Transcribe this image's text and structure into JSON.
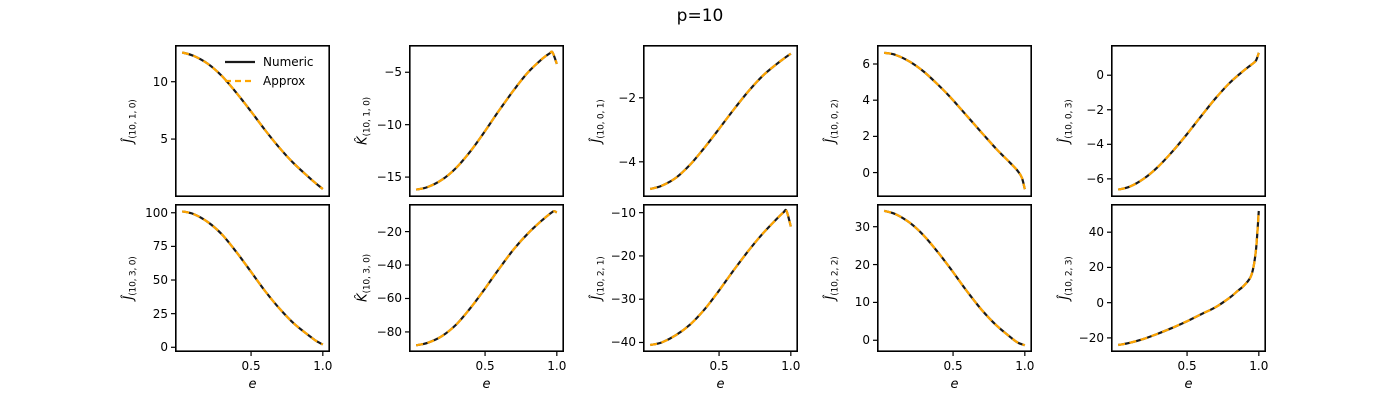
{
  "title": "p=10",
  "xlabel": "e",
  "colors": {
    "numeric": "#1a1a1a",
    "approx": "#FFA500"
  },
  "legend": {
    "location": "upper right of first subplot",
    "entries": [
      {
        "label": "Numeric",
        "color": "#1a1a1a",
        "style": "solid"
      },
      {
        "label": "Approx",
        "color": "#FFA500",
        "style": "dashed"
      }
    ]
  },
  "chart_data": [
    {
      "type": "line",
      "row": 0,
      "col": 0,
      "ylabel": {
        "main": "Ĵ",
        "sub": "(10, 1, 0)"
      },
      "xlim": [
        -0.03,
        1.05
      ],
      "ylim": [
        -0.05,
        13.2
      ],
      "xticks": [
        0.5,
        1.0
      ],
      "yticks": [
        5,
        10
      ],
      "series": [
        {
          "name": "Numeric",
          "style": "solid"
        },
        {
          "name": "Approx",
          "style": "dashed"
        }
      ],
      "x": [
        0.02,
        0.1,
        0.2,
        0.3,
        0.4,
        0.5,
        0.6,
        0.7,
        0.8,
        0.9,
        0.95,
        1.0
      ],
      "y": [
        12.55,
        12.25,
        11.55,
        10.45,
        9.0,
        7.4,
        5.75,
        4.2,
        2.85,
        1.7,
        1.15,
        0.65
      ]
    },
    {
      "type": "line",
      "row": 0,
      "col": 1,
      "ylabel": {
        "main": "K̂",
        "sub": "(10, 1, 0)"
      },
      "xlim": [
        -0.03,
        1.05
      ],
      "ylim": [
        -16.9,
        -2.4
      ],
      "xticks": [
        0.5,
        1.0
      ],
      "yticks": [
        -15,
        -10,
        -5
      ],
      "series": [
        {
          "name": "Numeric",
          "style": "solid"
        },
        {
          "name": "Approx",
          "style": "dashed"
        }
      ],
      "x": [
        0.02,
        0.1,
        0.2,
        0.3,
        0.4,
        0.5,
        0.6,
        0.7,
        0.8,
        0.9,
        0.95,
        0.97,
        1.0
      ],
      "y": [
        -16.2,
        -15.95,
        -15.25,
        -14.1,
        -12.5,
        -10.6,
        -8.6,
        -6.7,
        -5.0,
        -3.7,
        -3.2,
        -3.1,
        -4.2
      ]
    },
    {
      "type": "line",
      "row": 0,
      "col": 2,
      "ylabel": {
        "main": "Ĵ",
        "sub": "(10, 0, 1)"
      },
      "xlim": [
        -0.03,
        1.05
      ],
      "ylim": [
        -5.1,
        -0.35
      ],
      "xticks": [
        0.5,
        1.0
      ],
      "yticks": [
        -4,
        -2
      ],
      "series": [
        {
          "name": "Numeric",
          "style": "solid"
        },
        {
          "name": "Approx",
          "style": "dashed"
        }
      ],
      "x": [
        0.02,
        0.1,
        0.2,
        0.3,
        0.4,
        0.5,
        0.6,
        0.7,
        0.8,
        0.9,
        0.95,
        1.0
      ],
      "y": [
        -4.85,
        -4.75,
        -4.5,
        -4.08,
        -3.55,
        -2.97,
        -2.38,
        -1.82,
        -1.33,
        -0.95,
        -0.78,
        -0.62
      ]
    },
    {
      "type": "line",
      "row": 0,
      "col": 3,
      "ylabel": {
        "main": "Ĵ",
        "sub": "(10, 0, 2)"
      },
      "xlim": [
        -0.03,
        1.05
      ],
      "ylim": [
        -1.35,
        7.05
      ],
      "xticks": [
        0.5,
        1.0
      ],
      "yticks": [
        0,
        2,
        4,
        6
      ],
      "series": [
        {
          "name": "Numeric",
          "style": "solid"
        },
        {
          "name": "Approx",
          "style": "dashed"
        }
      ],
      "x": [
        0.02,
        0.1,
        0.2,
        0.3,
        0.4,
        0.5,
        0.6,
        0.7,
        0.8,
        0.9,
        0.95,
        0.98,
        1.0
      ],
      "y": [
        6.62,
        6.5,
        6.12,
        5.55,
        4.82,
        4.0,
        3.1,
        2.2,
        1.32,
        0.52,
        0.1,
        -0.3,
        -0.92
      ]
    },
    {
      "type": "line",
      "row": 0,
      "col": 4,
      "ylabel": {
        "main": "Ĵ",
        "sub": "(10, 0, 3)"
      },
      "xlim": [
        -0.03,
        1.05
      ],
      "ylim": [
        -7.05,
        1.75
      ],
      "xticks": [
        0.5,
        1.0
      ],
      "yticks": [
        -6,
        -4,
        -2,
        0
      ],
      "series": [
        {
          "name": "Numeric",
          "style": "solid"
        },
        {
          "name": "Approx",
          "style": "dashed"
        }
      ],
      "x": [
        0.02,
        0.1,
        0.2,
        0.3,
        0.4,
        0.5,
        0.6,
        0.7,
        0.8,
        0.9,
        0.95,
        0.98,
        1.0
      ],
      "y": [
        -6.62,
        -6.45,
        -5.98,
        -5.28,
        -4.4,
        -3.4,
        -2.35,
        -1.32,
        -0.42,
        0.3,
        0.62,
        0.85,
        1.3
      ]
    },
    {
      "type": "line",
      "row": 1,
      "col": 0,
      "ylabel": {
        "main": "Ĵ",
        "sub": "(10, 3, 0)"
      },
      "xlim": [
        -0.03,
        1.05
      ],
      "ylim": [
        -3.5,
        106.5
      ],
      "xticks": [
        0.5,
        1.0
      ],
      "yticks": [
        0,
        25,
        50,
        75,
        100
      ],
      "series": [
        {
          "name": "Numeric",
          "style": "solid"
        },
        {
          "name": "Approx",
          "style": "dashed"
        }
      ],
      "x": [
        0.02,
        0.1,
        0.2,
        0.3,
        0.4,
        0.5,
        0.6,
        0.7,
        0.8,
        0.9,
        0.95,
        1.0
      ],
      "y": [
        101,
        99,
        93,
        83.5,
        70.5,
        56,
        41.5,
        28.5,
        17.5,
        9,
        5,
        2
      ]
    },
    {
      "type": "line",
      "row": 1,
      "col": 1,
      "ylabel": {
        "main": "K̂",
        "sub": "(10, 3, 0)"
      },
      "xlim": [
        -0.03,
        1.05
      ],
      "ylim": [
        -92,
        -3.5
      ],
      "xticks": [
        0.5,
        1.0
      ],
      "yticks": [
        -80,
        -60,
        -40,
        -20
      ],
      "series": [
        {
          "name": "Numeric",
          "style": "solid"
        },
        {
          "name": "Approx",
          "style": "dashed"
        }
      ],
      "x": [
        0.02,
        0.1,
        0.2,
        0.3,
        0.4,
        0.5,
        0.6,
        0.7,
        0.8,
        0.9,
        0.95,
        0.98,
        1.0
      ],
      "y": [
        -88,
        -86.5,
        -82.5,
        -75.5,
        -65.5,
        -54,
        -42,
        -30.5,
        -21,
        -13,
        -9.5,
        -7.8,
        -8.6
      ]
    },
    {
      "type": "line",
      "row": 1,
      "col": 2,
      "ylabel": {
        "main": "Ĵ",
        "sub": "(10, 2, 1)"
      },
      "xlim": [
        -0.03,
        1.05
      ],
      "ylim": [
        -42.2,
        -8.0
      ],
      "xticks": [
        0.5,
        1.0
      ],
      "yticks": [
        -40,
        -30,
        -20,
        -10
      ],
      "series": [
        {
          "name": "Numeric",
          "style": "solid"
        },
        {
          "name": "Approx",
          "style": "dashed"
        }
      ],
      "x": [
        0.02,
        0.1,
        0.2,
        0.3,
        0.4,
        0.5,
        0.6,
        0.7,
        0.8,
        0.9,
        0.95,
        0.97,
        1.0
      ],
      "y": [
        -40.6,
        -40.0,
        -38.3,
        -35.8,
        -32.3,
        -28.0,
        -23.4,
        -19.0,
        -15.0,
        -11.5,
        -9.9,
        -9.6,
        -13.2
      ]
    },
    {
      "type": "line",
      "row": 1,
      "col": 3,
      "ylabel": {
        "main": "Ĵ",
        "sub": "(10, 2, 2)"
      },
      "xlim": [
        -0.03,
        1.05
      ],
      "ylim": [
        -3.1,
        36.0
      ],
      "xticks": [
        0.5,
        1.0
      ],
      "yticks": [
        0,
        10,
        20,
        30
      ],
      "series": [
        {
          "name": "Numeric",
          "style": "solid"
        },
        {
          "name": "Approx",
          "style": "dashed"
        }
      ],
      "x": [
        0.02,
        0.1,
        0.2,
        0.3,
        0.4,
        0.5,
        0.6,
        0.7,
        0.8,
        0.9,
        0.95,
        1.0
      ],
      "y": [
        34.2,
        33.3,
        31.0,
        27.5,
        23.0,
        18.0,
        12.8,
        8.0,
        4.0,
        0.8,
        -0.6,
        -1.3
      ]
    },
    {
      "type": "line",
      "row": 1,
      "col": 4,
      "ylabel": {
        "main": "Ĵ",
        "sub": "(10, 2, 3)"
      },
      "xlim": [
        -0.03,
        1.05
      ],
      "ylim": [
        -28,
        56
      ],
      "xticks": [
        0.5,
        1.0
      ],
      "yticks": [
        -20,
        0,
        20,
        40
      ],
      "series": [
        {
          "name": "Numeric",
          "style": "solid"
        },
        {
          "name": "Approx",
          "style": "dashed"
        }
      ],
      "x": [
        0.02,
        0.1,
        0.2,
        0.3,
        0.4,
        0.5,
        0.6,
        0.7,
        0.8,
        0.85,
        0.9,
        0.95,
        0.98,
        1.0
      ],
      "y": [
        -24,
        -22.8,
        -20.5,
        -17.5,
        -14.2,
        -10.5,
        -6.5,
        -2.5,
        3.0,
        6.5,
        10.0,
        16.0,
        30.0,
        52.0
      ]
    }
  ]
}
